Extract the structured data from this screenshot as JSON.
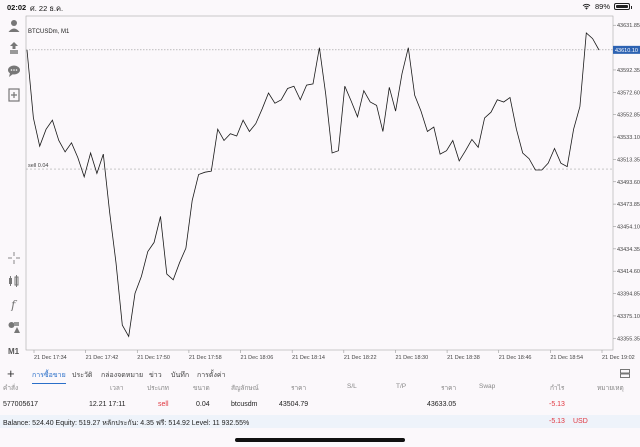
{
  "status": {
    "time": "02:02",
    "date": "ศ. 22 ธ.ค.",
    "battery": "89%",
    "battery_level": 0.89
  },
  "chart": {
    "symbol_label": "BTCUSDm, M1",
    "current_price": "43610.10",
    "position_label": "sell 0.04"
  },
  "chart_data": {
    "type": "line",
    "x_ticks": [
      "21 Dec 17:34",
      "21 Dec 17:42",
      "21 Dec 17:50",
      "21 Dec 17:58",
      "21 Dec 18:06",
      "21 Dec 18:14",
      "21 Dec 18:22",
      "21 Dec 18:30",
      "21 Dec 18:38",
      "21 Dec 18:46",
      "21 Dec 18:54",
      "21 Dec 19:02"
    ],
    "y_ticks": [
      "43631.85",
      "43592.35",
      "43572.60",
      "43552.85",
      "43533.10",
      "43513.35",
      "43493.60",
      "43473.85",
      "43454.10",
      "43434.35",
      "43414.60",
      "43394.85",
      "43375.10",
      "43355.35"
    ],
    "ylim": [
      43345,
      43640
    ],
    "position_price": 43504.79,
    "current_price": 43610.1,
    "values": [
      43610,
      43550,
      43525,
      43540,
      43548,
      43530,
      43520,
      43528,
      43515,
      43498,
      43519,
      43501,
      43518,
      43467,
      43422,
      43367,
      43357,
      43395,
      43410,
      43432,
      43440,
      43463,
      43412,
      43407,
      43422,
      43435,
      43477,
      43500,
      43502,
      43503,
      43540,
      43530,
      43536,
      43534,
      43548,
      43538,
      43545,
      43558,
      43572,
      43563,
      43566,
      43576,
      43578,
      43566,
      43579,
      43580,
      43612,
      43571,
      43519,
      43521,
      43578,
      43565,
      43551,
      43574,
      43564,
      43561,
      43538,
      43577,
      43556,
      43589,
      43612,
      43570,
      43556,
      43538,
      43542,
      43518,
      43521,
      43530,
      43512,
      43521,
      43531,
      43524,
      43550,
      43555,
      43566,
      43564,
      43568,
      43540,
      43519,
      43514,
      43504,
      43504,
      43510,
      43523,
      43510,
      43507,
      43540,
      43560,
      43625,
      43620,
      43610
    ]
  },
  "toolbar_left": {
    "icons": [
      "person-icon",
      "trade-icon",
      "chat-icon",
      "new-chart-icon",
      "crosshair-icon",
      "indicators-icon",
      "function-icon",
      "objects-icon"
    ],
    "timeframe": "M1"
  },
  "tabs": [
    "การซื้อขาย",
    "ประวัติ",
    "กล่องจดหมาย",
    "ข่าว",
    "บันทึก",
    "การตั้งค่า"
  ],
  "columns": [
    "คำสั่ง",
    "เวลา",
    "ประเภท",
    "ขนาด",
    "สัญลักษณ์",
    "ราคา",
    "S/L",
    "T/P",
    "ราคา",
    "Swap",
    "กำไร",
    "หมายเหตุ"
  ],
  "order": {
    "ticket": "577005617",
    "time": "12.21 17:11",
    "type": "sell",
    "size": "0.04",
    "symbol": "btcusdm",
    "open_price": "43504.79",
    "sl": "",
    "tp": "",
    "current_price": "43633.05",
    "swap": "",
    "profit": "-5.13",
    "comment": ""
  },
  "balance": {
    "text": "Balance: 524.40 Equity: 519.27 หลักประกัน: 4.35 ฟรี: 514.92 Level: 11 932.55%",
    "total": "-5.13",
    "currency": "USD"
  }
}
